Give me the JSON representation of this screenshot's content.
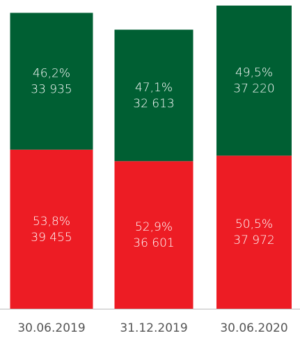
{
  "chart_data": {
    "type": "stacked-bar",
    "categories": [
      "30.06.2019",
      "31.12.2019",
      "30.06.2020"
    ],
    "series": [
      {
        "name": "bottom",
        "color": "#ed1c24",
        "values": [
          39455,
          36601,
          37972
        ],
        "value_labels": [
          "39 455",
          "36 601",
          "37 972"
        ],
        "shares": [
          53.8,
          52.9,
          50.5
        ],
        "share_labels": [
          "53,8%",
          "52,9%",
          "50,5%"
        ]
      },
      {
        "name": "top",
        "color": "#005f33",
        "values": [
          33935,
          32613,
          37220
        ],
        "value_labels": [
          "33 935",
          "32 613",
          "37 220"
        ],
        "shares": [
          46.2,
          47.1,
          49.5
        ],
        "share_labels": [
          "46,2%",
          "47,1%",
          "49,5%"
        ]
      }
    ]
  }
}
